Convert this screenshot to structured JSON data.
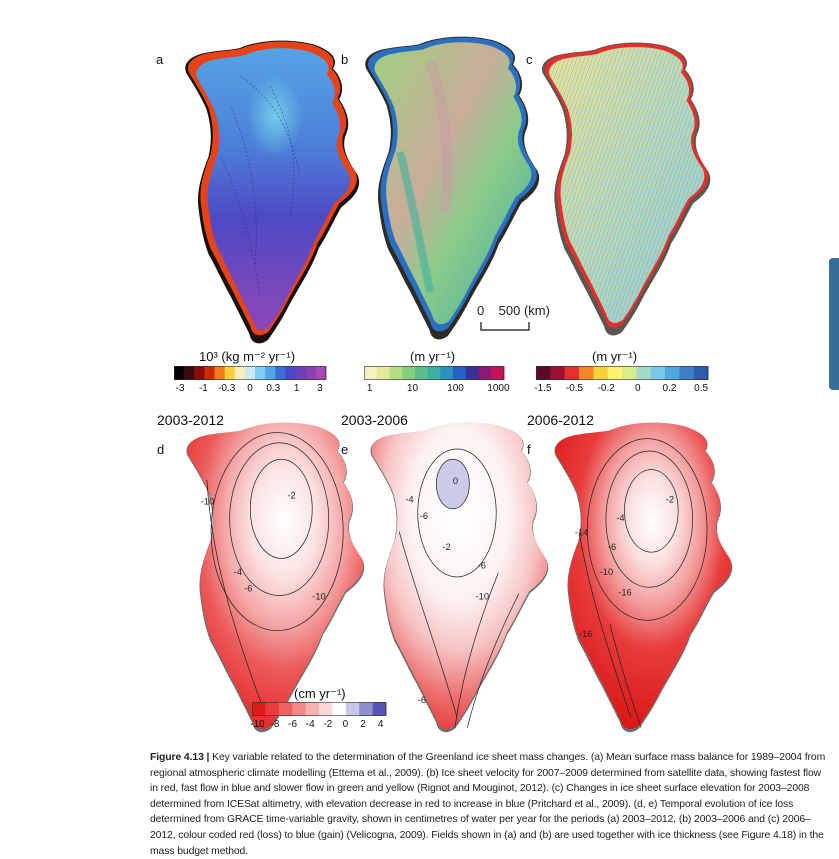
{
  "panels": [
    {
      "letter": "a",
      "period": ""
    },
    {
      "letter": "b",
      "period": ""
    },
    {
      "letter": "c",
      "period": ""
    },
    {
      "letter": "d",
      "period": "2003-2012"
    },
    {
      "letter": "e",
      "period": "2003-2006"
    },
    {
      "letter": "f",
      "period": "2006-2012"
    }
  ],
  "scale_bar": {
    "text": "0    500 (km)"
  },
  "colorbars": {
    "a": {
      "unit": "10³ (kg m⁻² yr⁻¹)",
      "ticks": [
        "-3",
        "-1",
        "-0.3",
        "0",
        "0.3",
        "1",
        "3"
      ],
      "colors": [
        "#000000",
        "#3a0a0a",
        "#8b0a0a",
        "#cc2a05",
        "#f07a1a",
        "#fbd03a",
        "#f8f0b8",
        "#cfe8f5",
        "#7fd0ee",
        "#52a7e8",
        "#3a6ed8",
        "#4848c8",
        "#6a40b8",
        "#8c3fb0",
        "#a548b0"
      ]
    },
    "b": {
      "unit": "(m yr⁻¹)",
      "ticks": [
        "1",
        "10",
        "100",
        "1000"
      ],
      "colors": [
        "#f6efc0",
        "#e7ea9c",
        "#b9de82",
        "#86cf7f",
        "#5cbe88",
        "#3fb1a2",
        "#2a92c0",
        "#2a5ec6",
        "#3b2f9a",
        "#8a1a73",
        "#c4135b"
      ]
    },
    "c": {
      "unit": "(m yr⁻¹)",
      "ticks": [
        "-1.5",
        "-0.5",
        "-0.2",
        "0",
        "0.2",
        "0.5"
      ],
      "colors": [
        "#5a0a2a",
        "#9c1030",
        "#e2302c",
        "#f5852a",
        "#f7d23a",
        "#fcf36e",
        "#d8ee88",
        "#a2dcc8",
        "#78c8e8",
        "#52a8dc",
        "#3c7fc8",
        "#2c5bb0"
      ]
    },
    "d": {
      "unit": "(cm yr⁻¹)",
      "ticks": [
        "-10",
        "-8",
        "-6",
        "-4",
        "-2",
        "0",
        "2",
        "4"
      ],
      "colors": [
        "#e41a1a",
        "#ea3d3b",
        "#ef6060",
        "#f38888",
        "#f7b0b0",
        "#fbd8d8",
        "#ffffff",
        "#c7c7ea",
        "#8f8fcf",
        "#5555b3"
      ]
    }
  },
  "contour_labels": {
    "d": [
      "-2",
      "-4",
      "-6",
      "-10",
      "-10"
    ],
    "e": [
      "0",
      "-2",
      "-4",
      "-6",
      "-6",
      "-10",
      "-6"
    ],
    "f": [
      "-2",
      "-4",
      "-6",
      "-10",
      "-14",
      "-16",
      "-16"
    ]
  },
  "caption": {
    "figure": "Figure 4.13 |",
    "text": " Key variable related to the determination of the Greenland ice sheet mass changes. (a) Mean surface mass balance for 1989–2004 from regional atmospheric climate modelling (Ettema et al., 2009). (b) Ice sheet velocity for 2007–2009 determined from satellite data, showing fastest flow in red, fast flow in blue and slower flow in green and yellow (Rignot and Mouginot, 2012). (c) Changes in ice sheet surface elevation for 2003–2008 determined from ICESat altimetry, with elevation decrease in red to increase in blue (Pritchard et al., 2009). (d, e) Temporal evolution of ice loss determined from GRACE time-variable gravity, shown in centimetres of water per year for the periods (a) 2003–2012, (b) 2003–2006 and (c) 2006–2012, colour coded red (loss) to blue (gain) (Velicogna, 2009). Fields shown in (a) and (b) are used together with ice thickness (see Figure 4.18) in the mass budget method."
  }
}
